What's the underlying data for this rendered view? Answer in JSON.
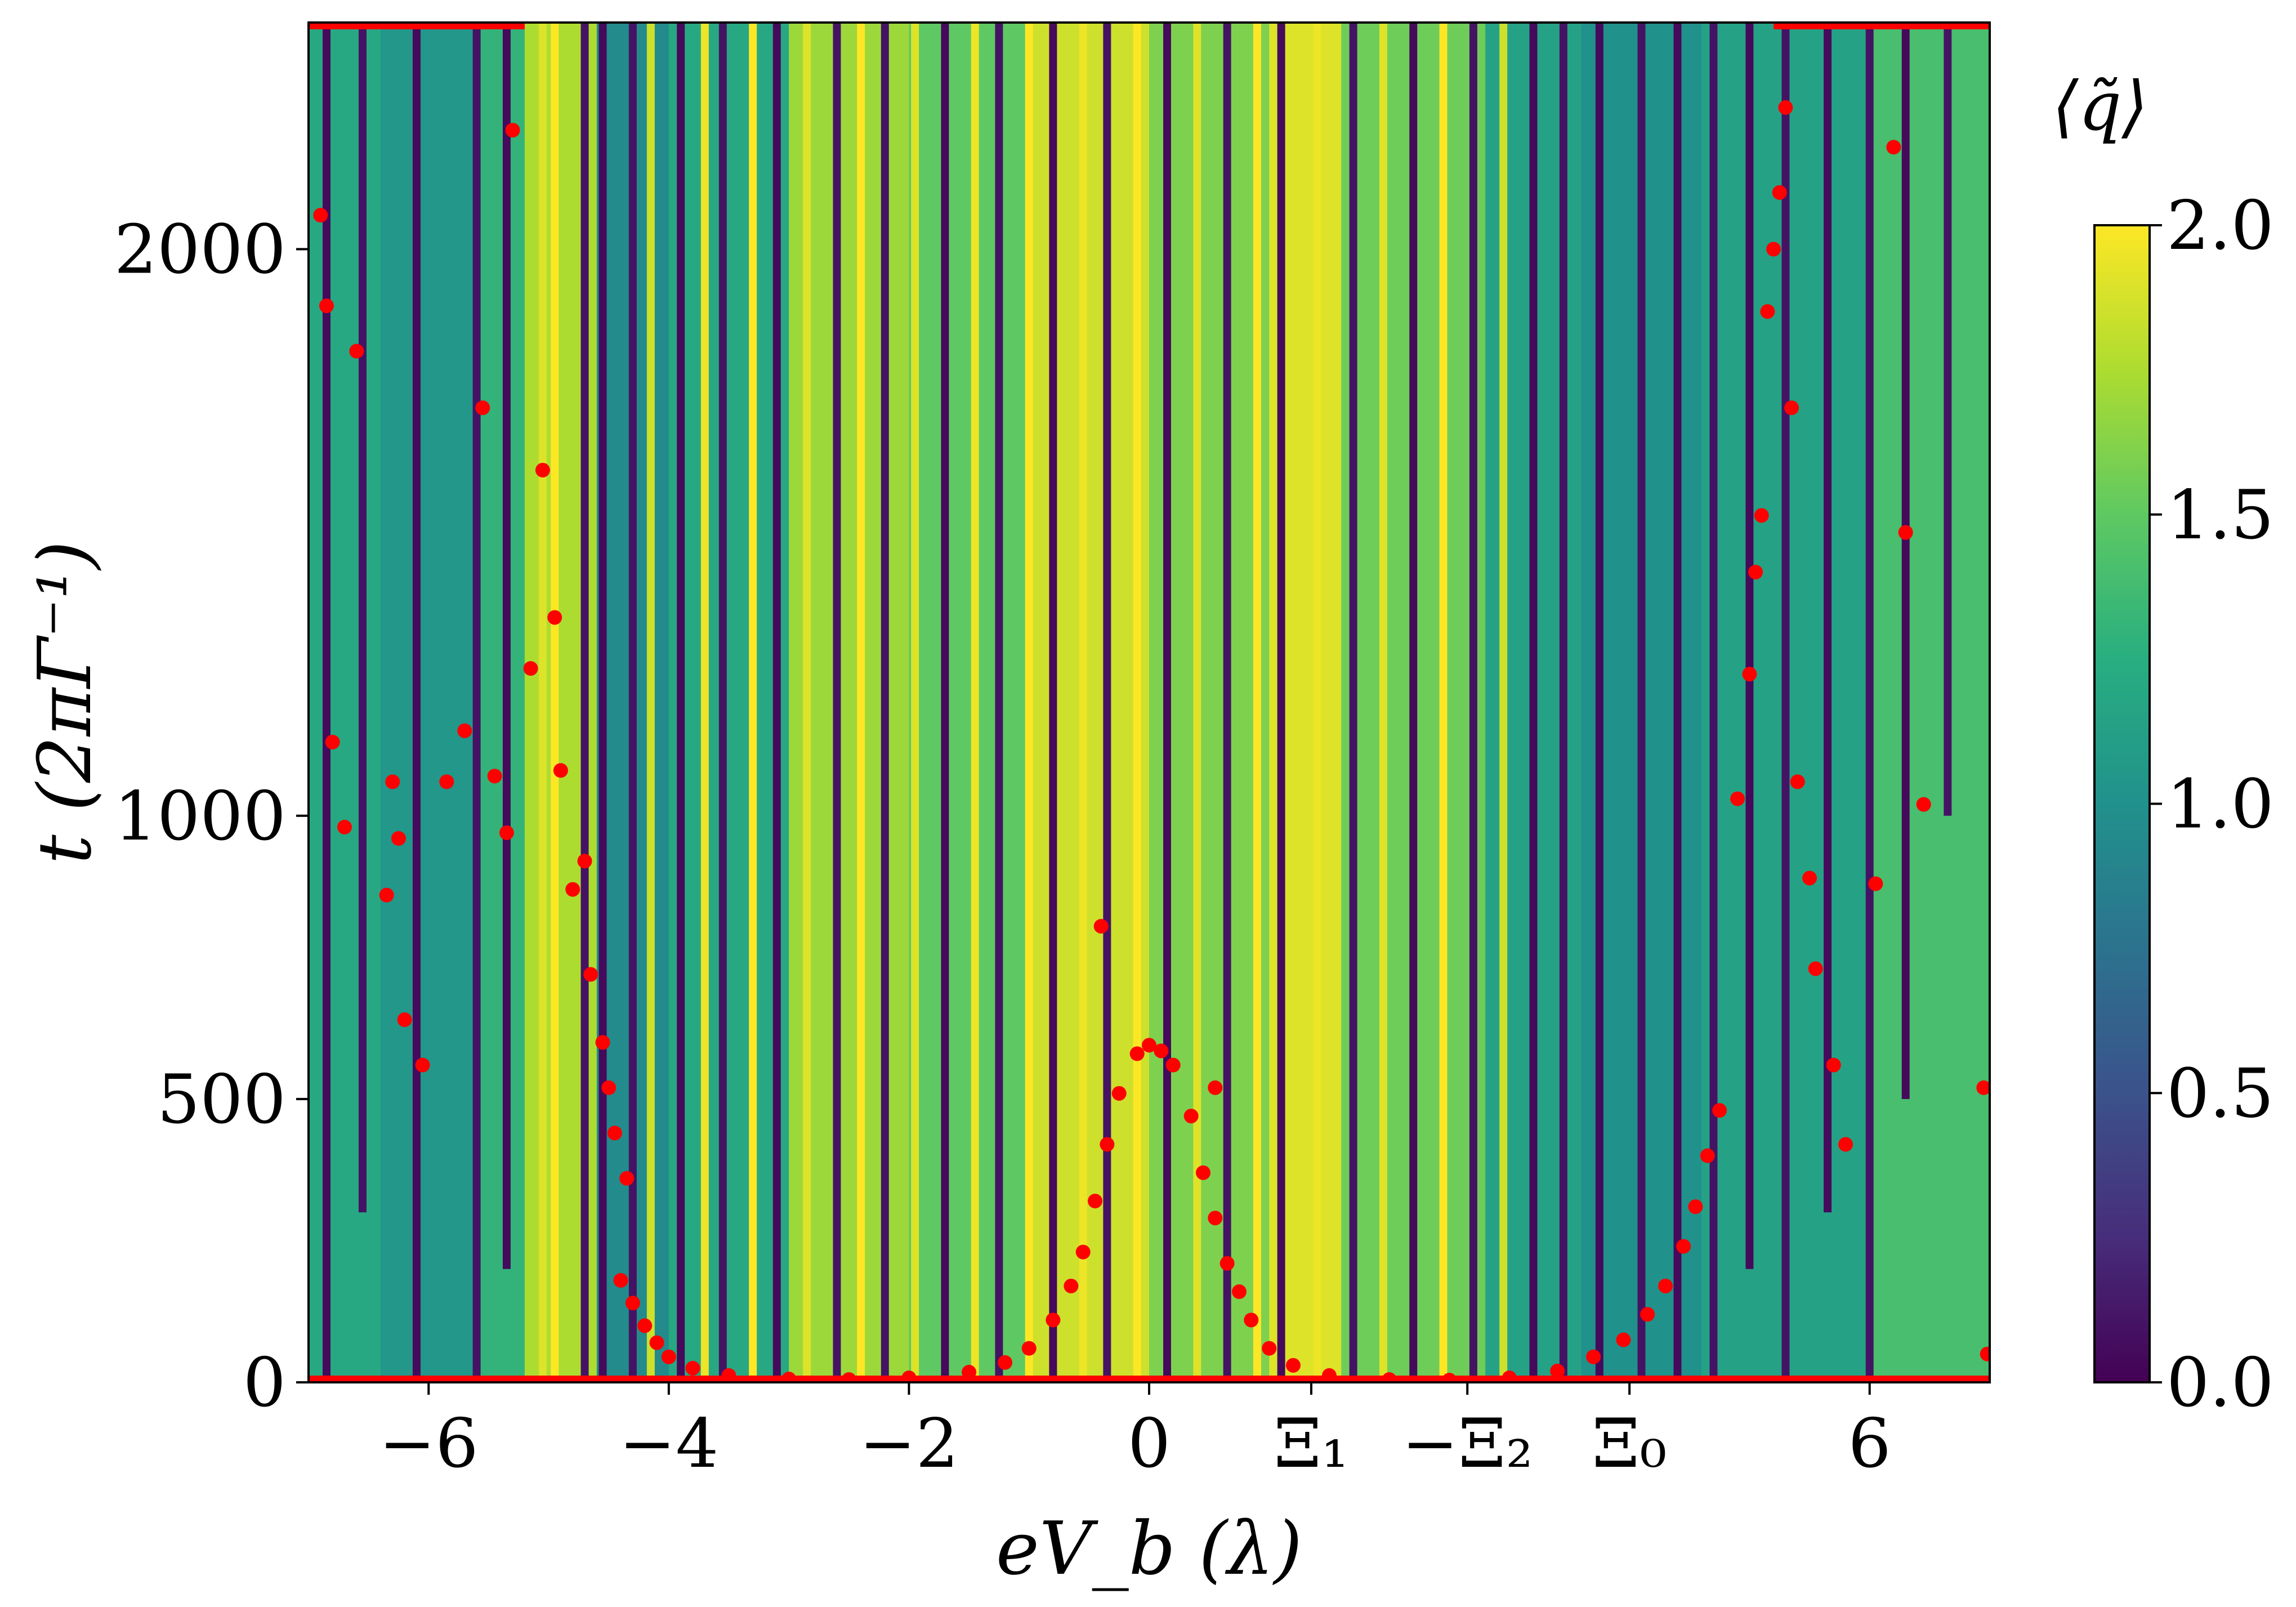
{
  "chart_data": {
    "type": "heatmap",
    "title": "",
    "xlabel": "eV_b (λ)",
    "ylabel": "t (2πΓ⁻¹)",
    "xlim": [
      -7,
      7
    ],
    "ylim": [
      0,
      2400
    ],
    "x_tick_labels": [
      {
        "value": -6,
        "label": "−6"
      },
      {
        "value": -4,
        "label": "−4"
      },
      {
        "value": -2,
        "label": "−2"
      },
      {
        "value": 0,
        "label": "0"
      },
      {
        "value": 1.35,
        "label": "Ξ₁"
      },
      {
        "value": 2.65,
        "label": "−Ξ₂"
      },
      {
        "value": 4.0,
        "label": "Ξ₀"
      },
      {
        "value": 6,
        "label": "6"
      }
    ],
    "y_tick_labels": [
      {
        "value": 0,
        "label": "0"
      },
      {
        "value": 500,
        "label": "500"
      },
      {
        "value": 1000,
        "label": "1000"
      },
      {
        "value": 2000,
        "label": "2000"
      }
    ],
    "colorbar": {
      "title": "⟨q̃⟩",
      "range": [
        0.0,
        2.0
      ],
      "colormap": "viridis",
      "ticks": [
        {
          "value": 0.0,
          "label": "0.0"
        },
        {
          "value": 0.5,
          "label": "0.5"
        },
        {
          "value": 1.0,
          "label": "1.0"
        },
        {
          "value": 1.5,
          "label": "1.5"
        },
        {
          "value": 2.0,
          "label": "2.0"
        }
      ]
    },
    "grid": false,
    "marker_color": "#ff0000",
    "colors": {
      "low": "#440154",
      "mid": "#21918c",
      "high": "#fde725"
    },
    "background_regions": [
      {
        "x": [
          -7.0,
          -6.4
        ],
        "value": 1.2
      },
      {
        "x": [
          -6.4,
          -5.6
        ],
        "value": 1.05
      },
      {
        "x": [
          -5.6,
          -5.2
        ],
        "value": 1.3
      },
      {
        "x": [
          -5.2,
          -4.6
        ],
        "value": 1.75
      },
      {
        "x": [
          -4.6,
          -4.0
        ],
        "value": 0.95
      },
      {
        "x": [
          -4.0,
          -3.0
        ],
        "value": 1.2
      },
      {
        "x": [
          -3.0,
          -2.0
        ],
        "value": 1.7
      },
      {
        "x": [
          -2.0,
          -1.0
        ],
        "value": 1.5
      },
      {
        "x": [
          -1.0,
          0.0
        ],
        "value": 1.85
      },
      {
        "x": [
          0.0,
          1.0
        ],
        "value": 1.6
      },
      {
        "x": [
          1.0,
          1.6
        ],
        "value": 1.9
      },
      {
        "x": [
          1.6,
          2.8
        ],
        "value": 1.55
      },
      {
        "x": [
          2.8,
          3.6
        ],
        "value": 1.15
      },
      {
        "x": [
          3.6,
          4.6
        ],
        "value": 1.0
      },
      {
        "x": [
          4.6,
          6.0
        ],
        "value": 1.15
      },
      {
        "x": [
          6.0,
          7.0
        ],
        "value": 1.4
      }
    ],
    "vertical_streaks": [
      {
        "x": -6.85,
        "t_min": 0,
        "value": 0.05
      },
      {
        "x": -6.55,
        "t_min": 300,
        "value": 0.1
      },
      {
        "x": -6.1,
        "t_min": 0,
        "value": 0.05
      },
      {
        "x": -5.6,
        "t_min": 0,
        "value": 0.1
      },
      {
        "x": -5.35,
        "t_min": 200,
        "value": 0.05
      },
      {
        "x": -5.05,
        "t_min": 0,
        "value": 1.9
      },
      {
        "x": -4.95,
        "t_min": 0,
        "value": 2.0
      },
      {
        "x": -4.7,
        "t_min": 0,
        "value": 0.1
      },
      {
        "x": -4.55,
        "t_min": 0,
        "value": 0.05
      },
      {
        "x": -4.3,
        "t_min": 0,
        "value": 0.1
      },
      {
        "x": -4.15,
        "t_min": 0,
        "value": 1.85
      },
      {
        "x": -3.9,
        "t_min": 0,
        "value": 0.05
      },
      {
        "x": -3.7,
        "t_min": 0,
        "value": 1.95
      },
      {
        "x": -3.55,
        "t_min": 0,
        "value": 0.1
      },
      {
        "x": -3.3,
        "t_min": 0,
        "value": 2.0
      },
      {
        "x": -3.1,
        "t_min": 0,
        "value": 0.05
      },
      {
        "x": -2.85,
        "t_min": 0,
        "value": 1.9
      },
      {
        "x": -2.6,
        "t_min": 0,
        "value": 0.1
      },
      {
        "x": -2.4,
        "t_min": 0,
        "value": 2.0
      },
      {
        "x": -2.2,
        "t_min": 0,
        "value": 0.1
      },
      {
        "x": -1.95,
        "t_min": 0,
        "value": 1.9
      },
      {
        "x": -1.7,
        "t_min": 0,
        "value": 0.05
      },
      {
        "x": -1.45,
        "t_min": 0,
        "value": 1.95
      },
      {
        "x": -1.25,
        "t_min": 0,
        "value": 0.1
      },
      {
        "x": -1.0,
        "t_min": 0,
        "value": 2.0
      },
      {
        "x": -0.8,
        "t_min": 0,
        "value": 0.05
      },
      {
        "x": -0.55,
        "t_min": 0,
        "value": 1.95
      },
      {
        "x": -0.35,
        "t_min": 0,
        "value": 0.1
      },
      {
        "x": -0.1,
        "t_min": 0,
        "value": 2.0
      },
      {
        "x": 0.15,
        "t_min": 0,
        "value": 0.05
      },
      {
        "x": 0.4,
        "t_min": 0,
        "value": 1.9
      },
      {
        "x": 0.65,
        "t_min": 0,
        "value": 0.1
      },
      {
        "x": 0.9,
        "t_min": 0,
        "value": 2.0
      },
      {
        "x": 1.1,
        "t_min": 0,
        "value": 0.05
      },
      {
        "x": 1.4,
        "t_min": 0,
        "value": 1.95
      },
      {
        "x": 1.7,
        "t_min": 0,
        "value": 0.1
      },
      {
        "x": 1.95,
        "t_min": 0,
        "value": 1.9
      },
      {
        "x": 2.2,
        "t_min": 0,
        "value": 0.05
      },
      {
        "x": 2.45,
        "t_min": 0,
        "value": 2.0
      },
      {
        "x": 2.7,
        "t_min": 0,
        "value": 0.1
      },
      {
        "x": 2.95,
        "t_min": 0,
        "value": 1.85
      },
      {
        "x": 3.2,
        "t_min": 0,
        "value": 0.05
      },
      {
        "x": 3.45,
        "t_min": 0,
        "value": 0.1
      },
      {
        "x": 3.75,
        "t_min": 0,
        "value": 0.05
      },
      {
        "x": 4.1,
        "t_min": 0,
        "value": 0.1
      },
      {
        "x": 4.4,
        "t_min": 0,
        "value": 0.05
      },
      {
        "x": 4.7,
        "t_min": 0,
        "value": 0.1
      },
      {
        "x": 5.0,
        "t_min": 200,
        "value": 0.05
      },
      {
        "x": 5.3,
        "t_min": 0,
        "value": 0.1
      },
      {
        "x": 5.65,
        "t_min": 300,
        "value": 0.05
      },
      {
        "x": 6.0,
        "t_min": 0,
        "value": 0.1
      },
      {
        "x": 6.3,
        "t_min": 500,
        "value": 0.05
      },
      {
        "x": 6.65,
        "t_min": 1000,
        "value": 0.1
      }
    ],
    "markers": [
      {
        "x": -4.4,
        "t": 180
      },
      {
        "x": -4.3,
        "t": 140
      },
      {
        "x": -4.2,
        "t": 100
      },
      {
        "x": -4.1,
        "t": 70
      },
      {
        "x": -4.0,
        "t": 45
      },
      {
        "x": -3.8,
        "t": 25
      },
      {
        "x": -3.5,
        "t": 12
      },
      {
        "x": -3.0,
        "t": 6
      },
      {
        "x": -2.5,
        "t": 5
      },
      {
        "x": -2.0,
        "t": 8
      },
      {
        "x": -1.5,
        "t": 18
      },
      {
        "x": -1.2,
        "t": 35
      },
      {
        "x": -1.0,
        "t": 60
      },
      {
        "x": -0.8,
        "t": 110
      },
      {
        "x": -0.65,
        "t": 170
      },
      {
        "x": -0.55,
        "t": 230
      },
      {
        "x": -0.45,
        "t": 320
      },
      {
        "x": -0.35,
        "t": 420
      },
      {
        "x": -0.25,
        "t": 510
      },
      {
        "x": -0.1,
        "t": 580
      },
      {
        "x": 0.0,
        "t": 595
      },
      {
        "x": 0.1,
        "t": 585
      },
      {
        "x": 0.2,
        "t": 560
      },
      {
        "x": 0.35,
        "t": 470
      },
      {
        "x": 0.45,
        "t": 370
      },
      {
        "x": 0.55,
        "t": 290
      },
      {
        "x": 0.65,
        "t": 210
      },
      {
        "x": 0.75,
        "t": 160
      },
      {
        "x": 0.85,
        "t": 110
      },
      {
        "x": 1.0,
        "t": 60
      },
      {
        "x": 1.2,
        "t": 30
      },
      {
        "x": 1.5,
        "t": 12
      },
      {
        "x": 2.0,
        "t": 5
      },
      {
        "x": 2.5,
        "t": 4
      },
      {
        "x": 3.0,
        "t": 8
      },
      {
        "x": 3.4,
        "t": 20
      },
      {
        "x": 3.7,
        "t": 45
      },
      {
        "x": 3.95,
        "t": 75
      },
      {
        "x": 4.15,
        "t": 120
      },
      {
        "x": 4.3,
        "t": 170
      },
      {
        "x": 4.45,
        "t": 240
      },
      {
        "x": 4.55,
        "t": 310
      },
      {
        "x": 4.65,
        "t": 400
      },
      {
        "x": 4.75,
        "t": 480
      },
      {
        "x": -6.9,
        "t": 2060
      },
      {
        "x": -6.85,
        "t": 1900
      },
      {
        "x": -6.8,
        "t": 1130
      },
      {
        "x": -6.7,
        "t": 980
      },
      {
        "x": -6.6,
        "t": 1820
      },
      {
        "x": -6.35,
        "t": 860
      },
      {
        "x": -6.3,
        "t": 1060
      },
      {
        "x": -6.25,
        "t": 960
      },
      {
        "x": -6.2,
        "t": 640
      },
      {
        "x": -6.05,
        "t": 560
      },
      {
        "x": -5.85,
        "t": 1060
      },
      {
        "x": -5.7,
        "t": 1150
      },
      {
        "x": -5.55,
        "t": 1720
      },
      {
        "x": -5.45,
        "t": 1070
      },
      {
        "x": -5.35,
        "t": 970
      },
      {
        "x": -5.3,
        "t": 2210
      },
      {
        "x": -5.15,
        "t": 1260
      },
      {
        "x": -5.05,
        "t": 1610
      },
      {
        "x": -4.95,
        "t": 1350
      },
      {
        "x": -4.9,
        "t": 1080
      },
      {
        "x": -4.8,
        "t": 870
      },
      {
        "x": -4.7,
        "t": 920
      },
      {
        "x": -4.65,
        "t": 720
      },
      {
        "x": -4.55,
        "t": 600
      },
      {
        "x": -4.5,
        "t": 520
      },
      {
        "x": -4.45,
        "t": 440
      },
      {
        "x": -4.35,
        "t": 360
      },
      {
        "x": -0.4,
        "t": 805
      },
      {
        "x": 0.55,
        "t": 520
      },
      {
        "x": 4.9,
        "t": 1030
      },
      {
        "x": 5.0,
        "t": 1250
      },
      {
        "x": 5.05,
        "t": 1430
      },
      {
        "x": 5.1,
        "t": 1530
      },
      {
        "x": 5.15,
        "t": 1890
      },
      {
        "x": 5.2,
        "t": 2000
      },
      {
        "x": 5.25,
        "t": 2100
      },
      {
        "x": 5.3,
        "t": 2250
      },
      {
        "x": 5.35,
        "t": 1720
      },
      {
        "x": 5.4,
        "t": 1060
      },
      {
        "x": 5.5,
        "t": 890
      },
      {
        "x": 5.55,
        "t": 730
      },
      {
        "x": 5.7,
        "t": 560
      },
      {
        "x": 5.8,
        "t": 420
      },
      {
        "x": 6.05,
        "t": 880
      },
      {
        "x": 6.2,
        "t": 2180
      },
      {
        "x": 6.3,
        "t": 1500
      },
      {
        "x": 6.45,
        "t": 1020
      },
      {
        "x": 6.95,
        "t": 520
      },
      {
        "x": 6.98,
        "t": 50
      }
    ],
    "top_band_markers": [
      {
        "x_start": -7.0,
        "x_end": -5.2,
        "t": 2395
      },
      {
        "x_start": 5.2,
        "x_end": 7.0,
        "t": 2395
      }
    ]
  }
}
